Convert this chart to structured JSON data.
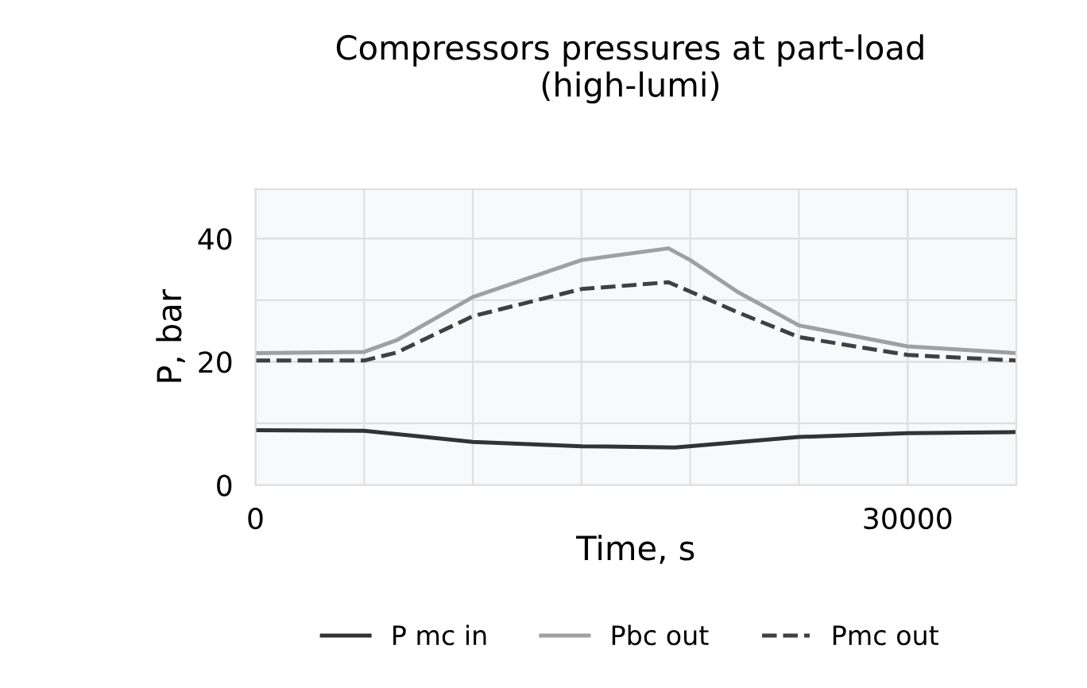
{
  "chart_data": {
    "type": "line",
    "title": "Compressors pressures at part-load\n(high-lumi)",
    "xlabel": "Time, s",
    "ylabel": "P, bar",
    "xlim": [
      0,
      35000
    ],
    "xticks": [
      0,
      30000
    ],
    "ylim": [
      0,
      48
    ],
    "yticks": [
      0,
      20,
      40
    ],
    "grid": true,
    "legend": "bottom",
    "series": [
      {
        "name": "P mc in",
        "color": "#333333",
        "line_style": "solid",
        "x": [
          0,
          5000,
          10000,
          15000,
          19300,
          25000,
          30000,
          35000
        ],
        "values": [
          8.9,
          8.8,
          7.0,
          6.3,
          6.1,
          7.8,
          8.4,
          8.6
        ]
      },
      {
        "name": "Pbc out",
        "color": "#a0a0a0",
        "line_style": "solid",
        "x": [
          0,
          5000,
          6500,
          10000,
          15000,
          19000,
          20000,
          22200,
          25000,
          30000,
          35000
        ],
        "values": [
          21.4,
          21.6,
          23.5,
          30.5,
          36.5,
          38.4,
          36.5,
          31.3,
          25.9,
          22.5,
          21.4
        ]
      },
      {
        "name": "Pmc out",
        "color": "#404040",
        "line_style": "dashed",
        "x": [
          0,
          5000,
          6500,
          10000,
          15000,
          19000,
          20000,
          22200,
          25000,
          30000,
          35000
        ],
        "values": [
          20.2,
          20.2,
          21.5,
          27.4,
          31.8,
          32.9,
          31.4,
          28.0,
          24.0,
          21.1,
          20.2
        ]
      }
    ]
  }
}
